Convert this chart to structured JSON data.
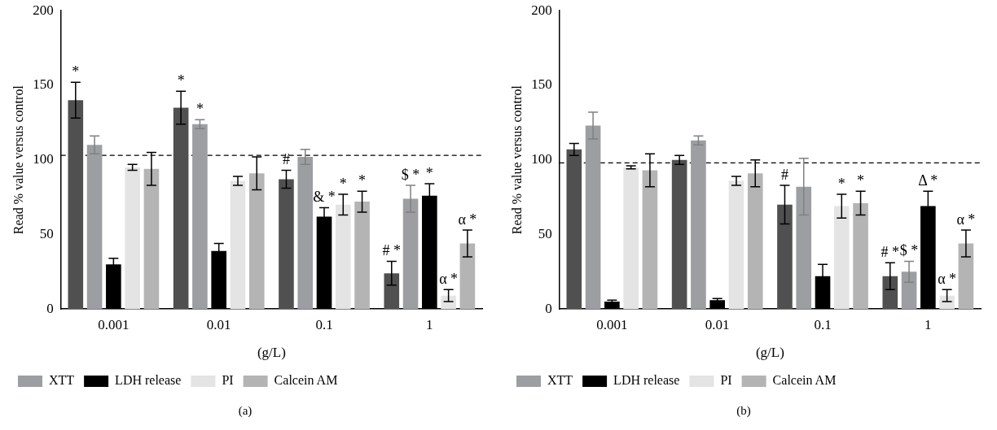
{
  "chart_data": [
    {
      "type": "bar",
      "title": "(a)",
      "xlabel": "(g/L)",
      "ylabel": "Read % value versus control",
      "categories": [
        "0.001",
        "0.01",
        "0.1",
        "1"
      ],
      "ylim": [
        0,
        200
      ],
      "yticks": [
        0,
        50,
        100,
        150,
        200
      ],
      "grid": false,
      "legend": "bottom",
      "ref_lines": [
        {
          "axis": "y",
          "value": 103,
          "line_style": "dashed",
          "color": "#000000"
        }
      ],
      "series": [
        {
          "color": "#505050",
          "values": [
            140,
            135,
            87,
            24
          ],
          "errors": [
            12,
            11,
            6,
            8
          ],
          "value_labels": [
            "*",
            "*",
            "#",
            "# *"
          ]
        },
        {
          "name": "XTT",
          "color": "#9d9ea2",
          "values": [
            110,
            124,
            102,
            74
          ],
          "errors": [
            6,
            3,
            5,
            9
          ],
          "value_labels": [
            null,
            "*",
            null,
            "$ *"
          ]
        },
        {
          "name": "LDH release",
          "color": "#000000",
          "values": [
            30,
            39,
            62,
            76
          ],
          "errors": [
            4,
            5,
            6,
            8
          ],
          "value_labels": [
            null,
            null,
            "& *",
            "*"
          ]
        },
        {
          "name": "PI",
          "color": "#e4e4e4",
          "values": [
            95,
            86,
            70,
            9
          ],
          "errors": [
            2,
            3,
            7,
            4
          ],
          "value_labels": [
            null,
            null,
            "*",
            "α *"
          ]
        },
        {
          "name": "Calcein AM",
          "color": "#b4b4b4",
          "values": [
            94,
            91,
            72,
            44
          ],
          "errors": [
            11,
            11,
            7,
            9
          ],
          "value_labels": [
            null,
            null,
            "*",
            "α *"
          ]
        }
      ]
    },
    {
      "type": "bar",
      "title": "(b)",
      "xlabel": "(g/L)",
      "ylabel": "Read % value versus control",
      "categories": [
        "0.001",
        "0.01",
        "0.1",
        "1"
      ],
      "ylim": [
        0,
        200
      ],
      "yticks": [
        0,
        50,
        100,
        150,
        200
      ],
      "grid": false,
      "legend": "bottom",
      "ref_lines": [
        {
          "axis": "y",
          "value": 98,
          "line_style": "dashed",
          "color": "#000000"
        }
      ],
      "series": [
        {
          "color": "#505050",
          "values": [
            107,
            100,
            70,
            22
          ],
          "errors": [
            4,
            3,
            13,
            9
          ],
          "value_labels": [
            null,
            null,
            "#",
            "# *"
          ]
        },
        {
          "name": "XTT",
          "color": "#9d9ea2",
          "values": [
            123,
            113,
            82,
            25
          ],
          "errors": [
            9,
            3,
            19,
            7
          ],
          "value_labels": [
            null,
            null,
            null,
            "$ *"
          ]
        },
        {
          "name": "LDH release",
          "color": "#000000",
          "values": [
            5,
            6,
            22,
            69
          ],
          "errors": [
            1,
            1,
            8,
            10
          ],
          "value_labels": [
            null,
            null,
            null,
            "Δ *"
          ]
        },
        {
          "name": "PI",
          "color": "#e4e4e4",
          "values": [
            95,
            86,
            69,
            9
          ],
          "errors": [
            1,
            3,
            8,
            4
          ],
          "value_labels": [
            null,
            null,
            "*",
            "α *"
          ]
        },
        {
          "name": "Calcein AM",
          "color": "#b4b4b4",
          "values": [
            93,
            91,
            71,
            44
          ],
          "errors": [
            11,
            9,
            8,
            9
          ],
          "value_labels": [
            null,
            null,
            "*",
            "α *"
          ]
        }
      ]
    }
  ]
}
